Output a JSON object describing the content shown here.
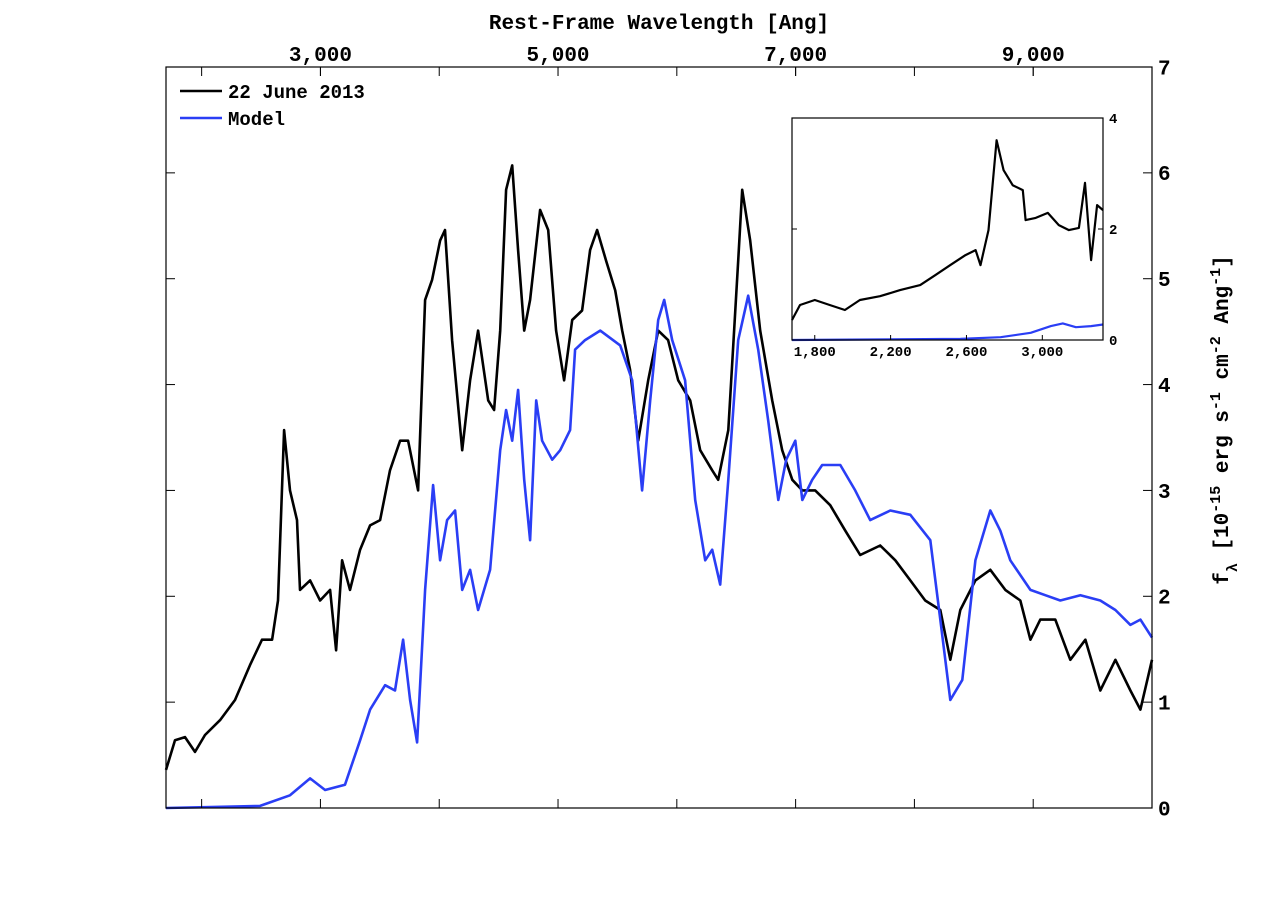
{
  "chart_data": [
    {
      "type": "line",
      "xlabel": "Rest-Frame Wavelength [Ang]",
      "ylabel": [
        {
          "text": "f"
        },
        {
          "text": "λ",
          "sub": true
        },
        {
          "text": " [10"
        },
        {
          "text": "-15",
          "sup": true
        },
        {
          "text": " erg s"
        },
        {
          "text": "-1",
          "sup": true
        },
        {
          "text": " cm"
        },
        {
          "text": "-2",
          "sup": true
        },
        {
          "text": " Ang"
        },
        {
          "text": "-1",
          "sup": true
        },
        {
          "text": "]"
        }
      ],
      "xlim": [
        1700,
        10000
      ],
      "ylim": [
        0,
        7
      ],
      "xticks": [
        {
          "value": 3000,
          "label": "3,000"
        },
        {
          "value": 5000,
          "label": "5,000"
        },
        {
          "value": 7000,
          "label": "7,000"
        },
        {
          "value": 9000,
          "label": "9,000"
        }
      ],
      "minor_xticks": [
        2000,
        3000,
        4000,
        5000,
        6000,
        7000,
        8000,
        9000
      ],
      "yticks": [
        0,
        1,
        2,
        3,
        4,
        5,
        6,
        7
      ],
      "xtick_side": "top",
      "ytick_side": "right",
      "legend": "upper left",
      "series": [
        {
          "name": "22 June 2013",
          "color": "#000000",
          "x": [
            1700,
            1776,
            1860,
            1944,
            2028,
            2155,
            2281,
            2407,
            2508,
            2593,
            2643,
            2694,
            2744,
            2803,
            2828,
            2913,
            2997,
            3081,
            3132,
            3182,
            3249,
            3334,
            3418,
            3502,
            3586,
            3671,
            3738,
            3822,
            3881,
            3940,
            4007,
            4049,
            4108,
            4193,
            4260,
            4327,
            4412,
            4462,
            4513,
            4563,
            4614,
            4664,
            4715,
            4765,
            4849,
            4917,
            4984,
            5051,
            5119,
            5203,
            5270,
            5329,
            5405,
            5481,
            5540,
            5607,
            5675,
            5759,
            5843,
            5927,
            6012,
            6113,
            6197,
            6298,
            6348,
            6433,
            6517,
            6550,
            6618,
            6702,
            6803,
            6887,
            6972,
            7056,
            7165,
            7291,
            7418,
            7544,
            7712,
            7839,
            7965,
            8091,
            8218,
            8302,
            8386,
            8513,
            8639,
            8765,
            8891,
            8976,
            9060,
            9186,
            9312,
            9439,
            9565,
            9692,
            9818,
            9902,
            10000
          ],
          "values": [
            0.36,
            0.64,
            0.67,
            0.53,
            0.69,
            0.83,
            1.02,
            1.35,
            1.59,
            1.59,
            1.96,
            3.57,
            3.0,
            2.72,
            2.06,
            2.15,
            1.96,
            2.06,
            1.49,
            2.34,
            2.06,
            2.44,
            2.67,
            2.72,
            3.19,
            3.47,
            3.47,
            3.0,
            4.8,
            4.99,
            5.36,
            5.46,
            4.42,
            3.38,
            4.04,
            4.51,
            3.85,
            3.76,
            4.51,
            5.84,
            6.07,
            5.27,
            4.51,
            4.8,
            5.65,
            5.46,
            4.51,
            4.04,
            4.61,
            4.7,
            5.27,
            5.46,
            5.17,
            4.89,
            4.51,
            4.14,
            3.47,
            4.04,
            4.51,
            4.42,
            4.04,
            3.85,
            3.38,
            3.19,
            3.1,
            3.57,
            5.17,
            5.84,
            5.36,
            4.51,
            3.85,
            3.38,
            3.1,
            3.0,
            3.0,
            2.86,
            2.62,
            2.39,
            2.48,
            2.34,
            2.15,
            1.96,
            1.87,
            1.4,
            1.87,
            2.15,
            2.25,
            2.06,
            1.96,
            1.59,
            1.78,
            1.78,
            1.4,
            1.59,
            1.11,
            1.4,
            1.11,
            0.93,
            1.4
          ]
        },
        {
          "name": "Model",
          "color": "#2a3ef5",
          "x": [
            1700,
            2492,
            2744,
            2913,
            3039,
            3207,
            3334,
            3418,
            3544,
            3628,
            3696,
            3755,
            3814,
            3881,
            3948,
            4007,
            4066,
            4134,
            4193,
            4260,
            4327,
            4428,
            4513,
            4563,
            4614,
            4664,
            4715,
            4765,
            4816,
            4866,
            4951,
            5018,
            5102,
            5144,
            5228,
            5355,
            5523,
            5624,
            5708,
            5776,
            5843,
            5894,
            5961,
            6070,
            6155,
            6239,
            6298,
            6365,
            6433,
            6517,
            6601,
            6685,
            6769,
            6854,
            6921,
            6997,
            7056,
            7140,
            7224,
            7376,
            7502,
            7628,
            7797,
            7965,
            8134,
            8218,
            8302,
            8403,
            8513,
            8639,
            8723,
            8807,
            8976,
            9102,
            9228,
            9397,
            9565,
            9692,
            9818,
            9902,
            10000
          ],
          "values": [
            0,
            0.02,
            0.12,
            0.28,
            0.17,
            0.22,
            0.64,
            0.93,
            1.16,
            1.11,
            1.59,
            1.02,
            0.62,
            2.06,
            3.05,
            2.34,
            2.72,
            2.81,
            2.06,
            2.25,
            1.87,
            2.25,
            3.38,
            3.76,
            3.47,
            3.95,
            3.1,
            2.53,
            3.85,
            3.47,
            3.29,
            3.38,
            3.57,
            4.33,
            4.42,
            4.51,
            4.37,
            4.04,
            3.0,
            3.85,
            4.61,
            4.8,
            4.42,
            4.04,
            2.91,
            2.34,
            2.44,
            2.11,
            3.1,
            4.42,
            4.84,
            4.33,
            3.66,
            2.91,
            3.29,
            3.47,
            2.91,
            3.1,
            3.24,
            3.24,
            3.0,
            2.72,
            2.81,
            2.77,
            2.53,
            1.78,
            1.02,
            1.21,
            2.34,
            2.81,
            2.62,
            2.34,
            2.06,
            2.01,
            1.96,
            2.01,
            1.96,
            1.87,
            1.73,
            1.78,
            1.61
          ]
        }
      ]
    },
    {
      "type": "line",
      "xlim": [
        1680,
        3320
      ],
      "ylim": [
        0,
        4
      ],
      "xticks": [
        {
          "value": 1800,
          "label": "1,800"
        },
        {
          "value": 2200,
          "label": "2,200"
        },
        {
          "value": 2600,
          "label": "2,600"
        },
        {
          "value": 3000,
          "label": "3,000"
        }
      ],
      "yticks": [
        0,
        2,
        4
      ],
      "xtick_side": "bottom",
      "ytick_side": "right",
      "series": [
        {
          "color": "#000000",
          "x": [
            1680,
            1722,
            1800,
            1879,
            1959,
            2038,
            2144,
            2250,
            2356,
            2436,
            2515,
            2595,
            2648,
            2674,
            2716,
            2759,
            2796,
            2844,
            2897,
            2912,
            2965,
            3029,
            3087,
            3140,
            3193,
            3225,
            3257,
            3289,
            3320
          ],
          "values": [
            0.36,
            0.63,
            0.72,
            0.63,
            0.54,
            0.72,
            0.79,
            0.9,
            0.99,
            1.17,
            1.35,
            1.53,
            1.62,
            1.35,
            1.98,
            3.6,
            3.06,
            2.79,
            2.7,
            2.16,
            2.2,
            2.29,
            2.07,
            1.98,
            2.02,
            2.83,
            1.44,
            2.43,
            2.34
          ]
        },
        {
          "color": "#2a3ef5",
          "x": [
            1680,
            2568,
            2780,
            2939,
            3045,
            3108,
            3177,
            3257,
            3320
          ],
          "values": [
            0,
            0.02,
            0.05,
            0.13,
            0.25,
            0.3,
            0.23,
            0.25,
            0.28
          ]
        }
      ]
    }
  ]
}
